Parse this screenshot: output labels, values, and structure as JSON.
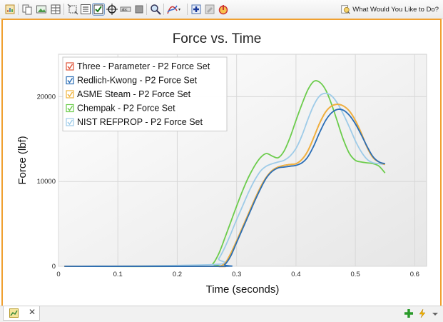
{
  "toolbar": {
    "buttons": [
      "report-icon",
      "copy-icon",
      "picture-icon",
      "table-icon",
      "zoom-fit-icon",
      "legend-icon",
      "checkbox-icon",
      "crosshair-icon",
      "abc-icon",
      "stop-icon",
      "magnify-icon",
      "curve-icon",
      "add-icon",
      "eraser-icon",
      "power-icon"
    ],
    "help_label": "What Would You Like to Do?"
  },
  "chart_data": {
    "type": "line",
    "title": "Force vs. Time",
    "xlabel": "Time (seconds)",
    "ylabel": "Force (lbf)",
    "xlim": [
      0,
      0.62
    ],
    "ylim": [
      0,
      25000
    ],
    "xticks": [
      "0",
      "0.1",
      "0.2",
      "0.3",
      "0.4",
      "0.5",
      "0.6"
    ],
    "xtick_values": [
      0,
      0.1,
      0.2,
      0.3,
      0.4,
      0.5,
      0.6
    ],
    "yticks": [
      "0",
      "10000",
      "20000"
    ],
    "ytick_values": [
      0,
      10000,
      20000
    ],
    "grid": true,
    "legend_position": "top-left",
    "series": [
      {
        "name": "Three - Parameter - P2 Force Set",
        "color": "#e0553a",
        "x": [
          0.01,
          0.26,
          0.27,
          0.28,
          0.29,
          0.3,
          0.31,
          0.32,
          0.33,
          0.34,
          0.35,
          0.36,
          0.37,
          0.38,
          0.39,
          0.4,
          0.41,
          0.42,
          0.43,
          0.44,
          0.45,
          0.46,
          0.47,
          0.48,
          0.49,
          0.5,
          0.51,
          0.52,
          0.53,
          0.54,
          0.55
        ],
        "y": [
          0,
          0,
          0,
          300,
          1500,
          3000,
          4600,
          6200,
          7800,
          9300,
          10500,
          11300,
          11700,
          11900,
          12000,
          12100,
          12600,
          13600,
          15200,
          16900,
          18200,
          18900,
          19100,
          18900,
          18300,
          17200,
          15700,
          14000,
          12800,
          12300,
          12000
        ]
      },
      {
        "name": "Redlich-Kwong - P2 Force Set",
        "color": "#2a6db5",
        "x": [
          0.01,
          0.27,
          0.28,
          0.29,
          0.3,
          0.31,
          0.32,
          0.33,
          0.34,
          0.35,
          0.36,
          0.37,
          0.38,
          0.39,
          0.4,
          0.41,
          0.42,
          0.43,
          0.44,
          0.45,
          0.46,
          0.47,
          0.48,
          0.49,
          0.5,
          0.51,
          0.52,
          0.53,
          0.54,
          0.55
        ],
        "y": [
          0,
          0,
          200,
          1200,
          2800,
          4400,
          6000,
          7600,
          9100,
          10400,
          11200,
          11600,
          11700,
          11800,
          11900,
          12200,
          12900,
          14200,
          15800,
          17200,
          18100,
          18500,
          18400,
          17800,
          16800,
          15500,
          14100,
          12900,
          12300,
          12100
        ]
      },
      {
        "name": "ASME Steam - P2 Force Set",
        "color": "#f0b43c",
        "x": [
          0.01,
          0.26,
          0.27,
          0.28,
          0.29,
          0.3,
          0.31,
          0.32,
          0.33,
          0.34,
          0.35,
          0.36,
          0.37,
          0.38,
          0.39,
          0.4,
          0.41,
          0.42,
          0.43,
          0.44,
          0.45,
          0.46,
          0.47,
          0.48,
          0.49,
          0.5,
          0.51,
          0.52,
          0.53,
          0.54,
          0.55
        ],
        "y": [
          0,
          0,
          0,
          300,
          1500,
          3000,
          4600,
          6200,
          7800,
          9300,
          10500,
          11300,
          11700,
          11900,
          12000,
          12100,
          12600,
          13600,
          15200,
          16900,
          18200,
          18900,
          19100,
          18900,
          18300,
          17200,
          15700,
          14000,
          12800,
          12300,
          12000
        ]
      },
      {
        "name": "Chempak - P2 Force Set",
        "color": "#6ccc4c",
        "x": [
          0.01,
          0.25,
          0.26,
          0.27,
          0.28,
          0.29,
          0.3,
          0.31,
          0.32,
          0.33,
          0.34,
          0.35,
          0.36,
          0.37,
          0.38,
          0.39,
          0.4,
          0.41,
          0.42,
          0.43,
          0.44,
          0.45,
          0.46,
          0.47,
          0.48,
          0.49,
          0.5,
          0.51,
          0.52,
          0.53,
          0.54,
          0.55
        ],
        "y": [
          0,
          0,
          300,
          1500,
          3300,
          5200,
          7100,
          8900,
          10500,
          11800,
          12800,
          13300,
          13000,
          12800,
          13600,
          15200,
          17200,
          19100,
          20800,
          21800,
          21700,
          20800,
          19100,
          17000,
          14900,
          13300,
          12500,
          12300,
          12200,
          12100,
          11800,
          11000
        ]
      },
      {
        "name": "NIST REFPROP - P2 Force Set",
        "color": "#9ecbe8",
        "x": [
          0.01,
          0.26,
          0.27,
          0.28,
          0.29,
          0.3,
          0.31,
          0.32,
          0.33,
          0.34,
          0.35,
          0.36,
          0.37,
          0.38,
          0.39,
          0.4,
          0.41,
          0.42,
          0.43,
          0.44,
          0.45,
          0.46,
          0.47,
          0.48,
          0.49,
          0.5,
          0.51,
          0.52,
          0.53,
          0.54,
          0.55
        ],
        "y": [
          0,
          200,
          900,
          2200,
          3800,
          5500,
          7100,
          8700,
          10100,
          11200,
          11800,
          12100,
          12300,
          12500,
          13000,
          13900,
          15400,
          17300,
          19000,
          20100,
          20400,
          20100,
          19200,
          17900,
          16400,
          14800,
          13500,
          12600,
          12200,
          12100,
          12000
        ]
      }
    ]
  },
  "bottom": {
    "icons": [
      "graph-tab-icon",
      "add-icon",
      "lightning-icon",
      "dropdown-arrow-icon"
    ],
    "tab_close": "✕"
  }
}
